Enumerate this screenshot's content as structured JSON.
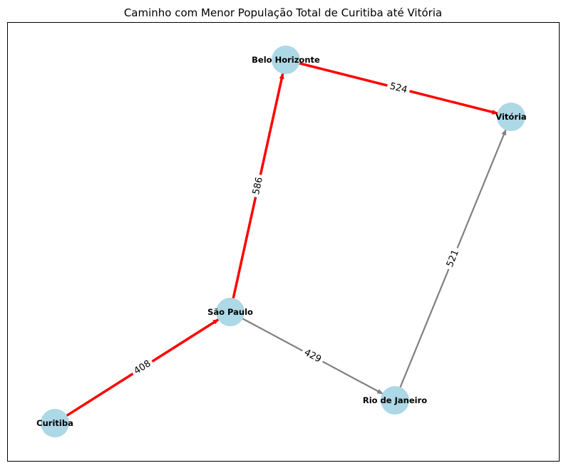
{
  "title": "Caminho com Menor População Total de Curitiba até Vitória",
  "colors": {
    "node_fill": "#add8e6",
    "path_edge": "#ff0000",
    "other_edge": "#808080",
    "frame": "#000000"
  },
  "nodes": [
    {
      "id": "curitiba",
      "label": "Curitiba"
    },
    {
      "id": "sao_paulo",
      "label": "São Paulo"
    },
    {
      "id": "belo_horizonte",
      "label": "Belo Horizonte"
    },
    {
      "id": "vitoria",
      "label": "Vitória"
    },
    {
      "id": "rio_de_janeiro",
      "label": "Rio de Janeiro"
    }
  ],
  "edges": [
    {
      "from": "curitiba",
      "to": "sao_paulo",
      "weight": "408",
      "on_path": true
    },
    {
      "from": "sao_paulo",
      "to": "belo_horizonte",
      "weight": "586",
      "on_path": true
    },
    {
      "from": "belo_horizonte",
      "to": "vitoria",
      "weight": "524",
      "on_path": true
    },
    {
      "from": "sao_paulo",
      "to": "rio_de_janeiro",
      "weight": "429",
      "on_path": false
    },
    {
      "from": "rio_de_janeiro",
      "to": "vitoria",
      "weight": "521",
      "on_path": false
    }
  ]
}
